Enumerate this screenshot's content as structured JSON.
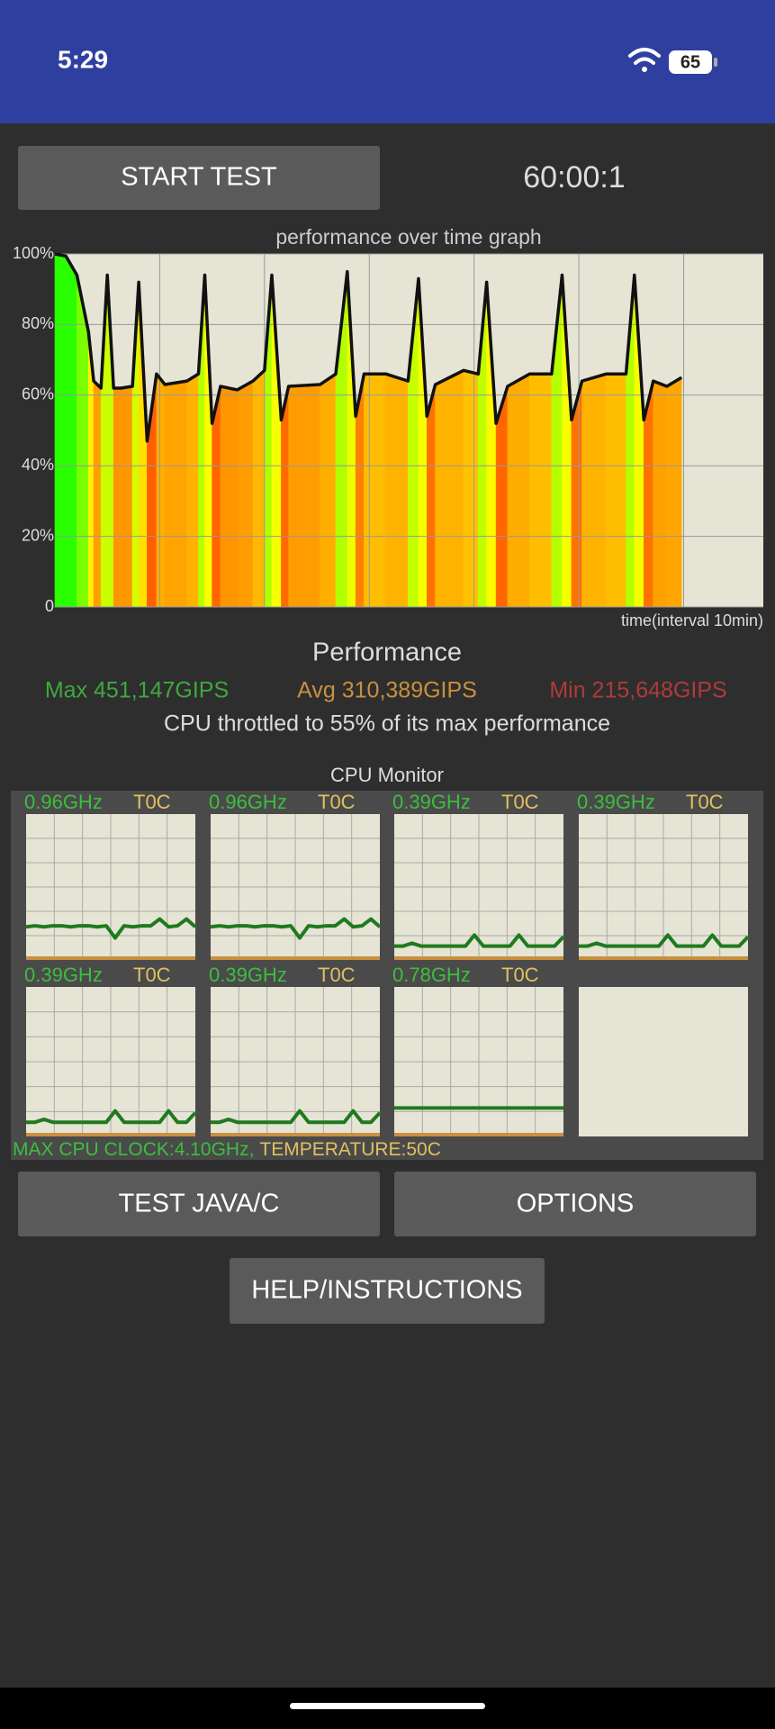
{
  "status_bar": {
    "time": "5:29",
    "battery": "65"
  },
  "controls": {
    "start": "START TEST",
    "timer": "60:00:1"
  },
  "graph": {
    "title": "performance over time graph",
    "x_label": "time(interval 10min)",
    "ylim": [
      0,
      100
    ],
    "yticks": [
      0,
      {
        "value": 20,
        "label": "20%"
      },
      {
        "value": 40,
        "label": "40%"
      },
      {
        "value": 60,
        "label": "60%"
      },
      {
        "value": 80,
        "label": "80%"
      },
      {
        "value": 100,
        "label": "100%"
      }
    ],
    "xlim": [
      0,
      67.6
    ],
    "xgrid": [
      10,
      20,
      30,
      40,
      50,
      60
    ],
    "x": [
      0,
      1.05,
      2.1,
      3.2,
      3.7,
      4.4,
      5.0,
      5.6,
      6.3,
      7.4,
      8.0,
      8.8,
      9.7,
      10.5,
      12.6,
      13.7,
      14.3,
      15.0,
      15.8,
      17.4,
      18.9,
      20.0,
      20.7,
      21.6,
      22.3,
      25.3,
      26.8,
      27.9,
      28.7,
      29.5,
      31.6,
      33.7,
      34.7,
      35.5,
      36.3,
      39.0,
      40.4,
      41.2,
      42.1,
      43.2,
      45.3,
      47.4,
      48.4,
      49.3,
      50.3,
      52.6,
      54.5,
      55.3,
      56.2,
      57.1,
      58.4,
      59.8
    ],
    "values": [
      100,
      99.4,
      94,
      78,
      64,
      62,
      94,
      62,
      62,
      62.5,
      92,
      47,
      66,
      63,
      64,
      66,
      94,
      52,
      62.5,
      61.5,
      64,
      67,
      94,
      53,
      62.5,
      63,
      66,
      95,
      54,
      66,
      66,
      64,
      93,
      54,
      63,
      67,
      66,
      92,
      52,
      62.5,
      66,
      66,
      94,
      53,
      64,
      66,
      66,
      94,
      53,
      64,
      62.5,
      65
    ]
  },
  "performance": {
    "title": "Performance",
    "max": "Max 451,147GIPS",
    "avg": "Avg 310,389GIPS",
    "min": "Min 215,648GIPS",
    "throttle": "CPU throttled to 55% of its max performance"
  },
  "cpu_monitor": {
    "title": "CPU Monitor",
    "ylim": [
      0,
      4.1
    ],
    "cores": [
      {
        "freq": "0.96GHz",
        "temp": "T0C",
        "values": [
          0.93,
          0.96,
          0.93,
          0.96,
          0.96,
          0.93,
          0.96,
          0.96,
          0.93,
          0.96,
          0.62,
          0.96,
          0.93,
          0.96,
          0.96,
          1.15,
          0.93,
          0.96,
          1.15,
          0.93
        ]
      },
      {
        "freq": "0.96GHz",
        "temp": "T0C",
        "values": [
          0.93,
          0.96,
          0.93,
          0.96,
          0.96,
          0.93,
          0.96,
          0.96,
          0.93,
          0.96,
          0.62,
          0.96,
          0.93,
          0.96,
          0.96,
          1.15,
          0.93,
          0.96,
          1.15,
          0.93
        ]
      },
      {
        "freq": "0.39GHz",
        "temp": "T0C",
        "values": [
          0.39,
          0.39,
          0.47,
          0.39,
          0.39,
          0.39,
          0.39,
          0.39,
          0.39,
          0.7,
          0.39,
          0.39,
          0.39,
          0.39,
          0.7,
          0.39,
          0.39,
          0.39,
          0.39,
          0.65
        ]
      },
      {
        "freq": "0.39GHz",
        "temp": "T0C",
        "values": [
          0.39,
          0.39,
          0.47,
          0.39,
          0.39,
          0.39,
          0.39,
          0.39,
          0.39,
          0.39,
          0.7,
          0.39,
          0.39,
          0.39,
          0.39,
          0.7,
          0.39,
          0.39,
          0.39,
          0.65
        ]
      },
      {
        "freq": "0.39GHz",
        "temp": "T0C",
        "values": [
          0.39,
          0.39,
          0.47,
          0.39,
          0.39,
          0.39,
          0.39,
          0.39,
          0.39,
          0.39,
          0.7,
          0.39,
          0.39,
          0.39,
          0.39,
          0.39,
          0.7,
          0.39,
          0.39,
          0.65
        ]
      },
      {
        "freq": "0.39GHz",
        "temp": "T0C",
        "values": [
          0.39,
          0.39,
          0.47,
          0.39,
          0.39,
          0.39,
          0.39,
          0.39,
          0.39,
          0.39,
          0.7,
          0.39,
          0.39,
          0.39,
          0.39,
          0.39,
          0.7,
          0.39,
          0.39,
          0.65
        ]
      },
      {
        "freq": "0.78GHz",
        "temp": "T0C",
        "values": [
          0.78,
          0.78,
          0.78,
          0.78,
          0.78,
          0.78,
          0.78,
          0.78,
          0.78,
          0.78,
          0.78,
          0.78,
          0.78,
          0.78,
          0.78,
          0.78,
          0.78,
          0.78,
          0.78,
          0.78
        ]
      }
    ],
    "max_clock": "MAX CPU CLOCK:4.10GHz,",
    "temperature": "TEMPERATURE:50C"
  },
  "buttons": {
    "test": "TEST JAVA/C",
    "options": "OPTIONS",
    "help": "HELP/INSTRUCTIONS"
  }
}
